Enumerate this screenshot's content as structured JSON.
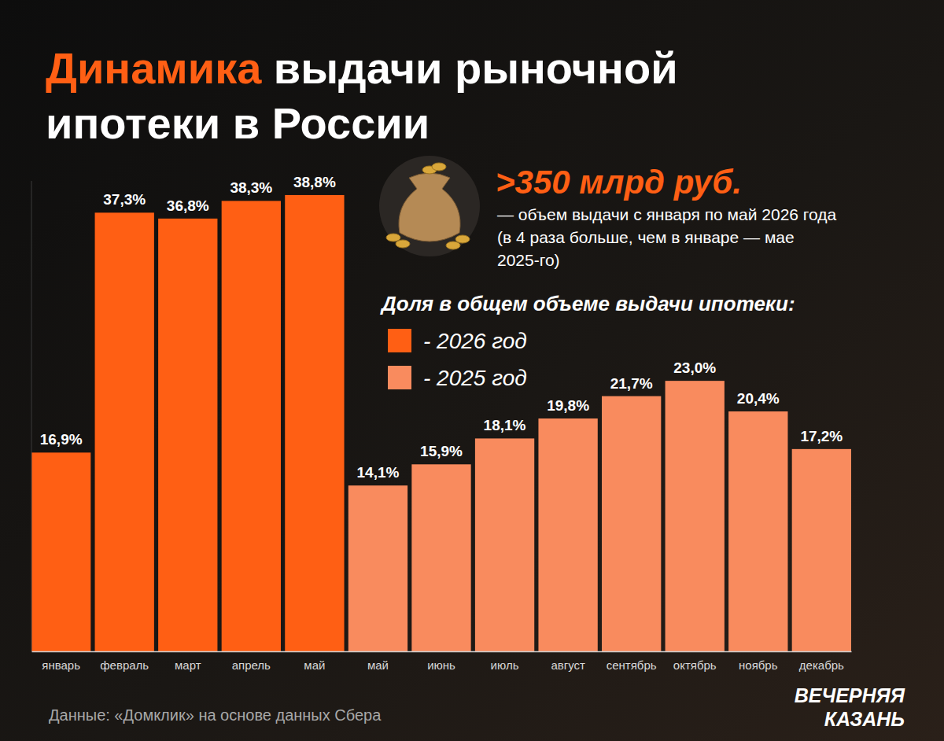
{
  "chart_data": {
    "type": "bar",
    "title": "Динамика выдачи рыночной ипотеки в России",
    "annotation": {
      "headline": ">350 млрд руб.",
      "text": "— объем выдачи с января по май 2026 года (в 4 раза больше, чем в январе — мае 2025-го)"
    },
    "legend_title": "Доля в общем объеме выдачи ипотеки:",
    "legend": "upper right",
    "categories": [
      "январь",
      "февраль",
      "март",
      "апрель",
      "май",
      "май",
      "июнь",
      "июль",
      "август",
      "сентябрь",
      "октябрь",
      "ноябрь",
      "декабрь"
    ],
    "series": [
      {
        "name": "- 2026 год",
        "color": "#ff5f14",
        "values": [
          16.9,
          37.3,
          36.8,
          38.3,
          38.8,
          null,
          null,
          null,
          null,
          null,
          null,
          null,
          null
        ],
        "value_labels": [
          "16,9%",
          "37,3%",
          "36,8%",
          "38,3%",
          "38,8%",
          null,
          null,
          null,
          null,
          null,
          null,
          null,
          null
        ]
      },
      {
        "name": "- 2025 год",
        "color": "#f98b5e",
        "values": [
          null,
          null,
          null,
          null,
          null,
          14.1,
          15.9,
          18.1,
          19.8,
          21.7,
          23.0,
          20.4,
          17.2
        ],
        "value_labels": [
          null,
          null,
          null,
          null,
          null,
          "14,1%",
          "15,9%",
          "18,1%",
          "19,8%",
          "21,7%",
          "23,0%",
          "20,4%",
          "17,2%"
        ]
      }
    ],
    "ylim": [
      0,
      40
    ],
    "data_labels": true,
    "tick_labels": "x",
    "source": "Данные: «Домклик» на основе данных Сбера",
    "logo": [
      "ВЕЧЕРНЯЯ",
      "КАЗАНЬ"
    ]
  }
}
